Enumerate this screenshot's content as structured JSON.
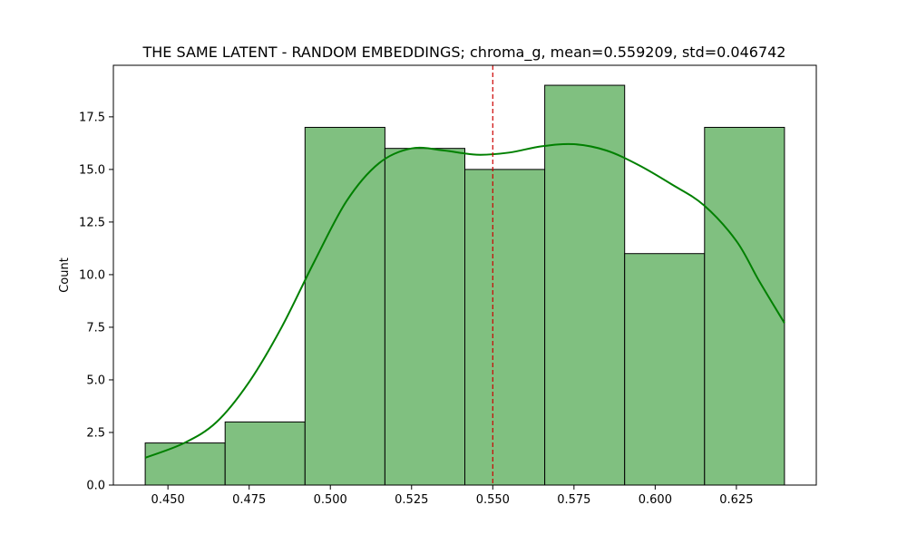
{
  "chart_data": {
    "type": "bar",
    "title": "THE SAME LATENT - RANDOM EMBEDDINGS; chroma_g, mean=0.559209, std=0.046742",
    "xlabel": "",
    "ylabel": "Count",
    "bins": [
      {
        "x0": 0.443,
        "x1": 0.4676,
        "count": 2
      },
      {
        "x0": 0.4676,
        "x1": 0.4922,
        "count": 3
      },
      {
        "x0": 0.4922,
        "x1": 0.5168,
        "count": 17
      },
      {
        "x0": 0.5168,
        "x1": 0.5414,
        "count": 16
      },
      {
        "x0": 0.5414,
        "x1": 0.566,
        "count": 15
      },
      {
        "x0": 0.566,
        "x1": 0.5906,
        "count": 19
      },
      {
        "x0": 0.5906,
        "x1": 0.6152,
        "count": 11
      },
      {
        "x0": 0.6152,
        "x1": 0.6398,
        "count": 17
      }
    ],
    "kde": [
      [
        0.443,
        1.3
      ],
      [
        0.455,
        2.0
      ],
      [
        0.465,
        3.0
      ],
      [
        0.475,
        4.9
      ],
      [
        0.485,
        7.5
      ],
      [
        0.495,
        10.6
      ],
      [
        0.505,
        13.5
      ],
      [
        0.515,
        15.3
      ],
      [
        0.525,
        16.0
      ],
      [
        0.535,
        15.9
      ],
      [
        0.545,
        15.7
      ],
      [
        0.555,
        15.8
      ],
      [
        0.565,
        16.1
      ],
      [
        0.575,
        16.2
      ],
      [
        0.585,
        15.9
      ],
      [
        0.595,
        15.2
      ],
      [
        0.605,
        14.3
      ],
      [
        0.615,
        13.3
      ],
      [
        0.625,
        11.6
      ],
      [
        0.632,
        9.7
      ],
      [
        0.6398,
        7.7
      ]
    ],
    "vline": {
      "x": 0.55
    },
    "xlim": [
      0.4332,
      0.6496
    ],
    "ylim": [
      0,
      19.95
    ],
    "xticks": [
      "0.450",
      "0.475",
      "0.500",
      "0.525",
      "0.550",
      "0.575",
      "0.600",
      "0.625"
    ],
    "yticks": [
      "0.0",
      "2.5",
      "5.0",
      "7.5",
      "10.0",
      "12.5",
      "15.0",
      "17.5"
    ],
    "colors": {
      "bar_fill": "#80c080",
      "bar_edge": "#000000",
      "kde_line": "#008000",
      "vline": "#cc0000"
    },
    "grid": false
  }
}
